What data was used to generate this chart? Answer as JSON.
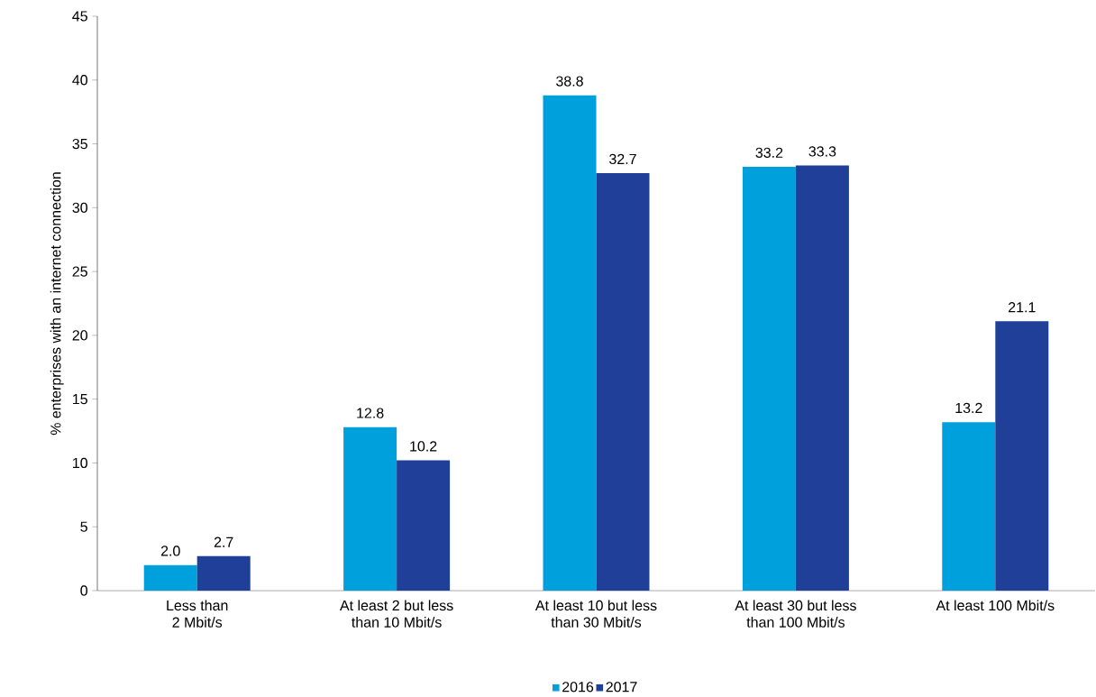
{
  "chart_data": {
    "type": "bar",
    "ylabel": "% enterprises with an internet connection",
    "categories": [
      "Less than\n2 Mbit/s",
      "At least 2 but less\nthan 10 Mbit/s",
      "At least 10 but less\nthan 30 Mbit/s",
      "At least 30 but less\nthan 100 Mbit/s",
      "At least 100 Mbit/s"
    ],
    "series": [
      {
        "name": "2016",
        "color": "#00a0dc",
        "values": [
          2.0,
          12.8,
          38.8,
          33.2,
          13.2
        ],
        "value_labels": [
          "2.0",
          "12.8",
          "38.8",
          "33.2",
          "13.2"
        ]
      },
      {
        "name": "2017",
        "color": "#1f3f99",
        "values": [
          2.7,
          10.2,
          32.7,
          33.3,
          21.1
        ],
        "value_labels": [
          "2.7",
          "10.2",
          "32.7",
          "33.3",
          "21.1"
        ]
      }
    ],
    "ylim": [
      0,
      45
    ],
    "yticks": [
      0,
      5,
      10,
      15,
      20,
      25,
      30,
      35,
      40,
      45
    ],
    "grid": false,
    "legend": "bottom"
  }
}
